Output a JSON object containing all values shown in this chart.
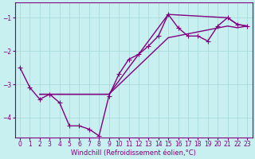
{
  "bg_color": "#c8f0f0",
  "grid_color": "#a8dada",
  "line_color": "#800080",
  "line_width": 1.0,
  "marker": "+",
  "marker_size": 4,
  "marker_lw": 0.8,
  "xlabel": "Windchill (Refroidissement éolien,°C)",
  "xlabel_fontsize": 6,
  "tick_fontsize": 5.5,
  "xlim": [
    -0.5,
    23.5
  ],
  "ylim": [
    -4.6,
    -0.55
  ],
  "yticks": [
    -4,
    -3,
    -2,
    -1
  ],
  "xticks": [
    0,
    1,
    2,
    3,
    4,
    5,
    6,
    7,
    8,
    9,
    10,
    11,
    12,
    13,
    14,
    15,
    16,
    17,
    18,
    19,
    20,
    21,
    22,
    23
  ],
  "curve1_x": [
    0,
    1,
    2,
    3,
    4,
    5,
    6,
    7,
    8,
    9,
    10,
    11,
    12,
    13,
    14,
    15,
    16,
    17,
    18,
    19,
    20,
    21,
    22,
    23
  ],
  "curve1_y": [
    -2.5,
    -3.1,
    -3.45,
    -3.3,
    -3.55,
    -4.25,
    -4.25,
    -4.35,
    -4.55,
    -3.35,
    -2.7,
    -2.25,
    -2.1,
    -1.85,
    -1.55,
    -0.9,
    -1.3,
    -1.55,
    -1.55,
    -1.7,
    -1.25,
    -1.0,
    -1.2,
    -1.25
  ],
  "curve2_x": [
    2,
    9,
    15,
    21,
    22,
    23
  ],
  "curve2_y": [
    -3.3,
    -3.3,
    -0.9,
    -1.0,
    -1.2,
    -1.25
  ],
  "curve3_x": [
    2,
    9,
    15,
    21,
    22,
    23
  ],
  "curve3_y": [
    -3.3,
    -3.3,
    -1.6,
    -1.25,
    -1.3,
    -1.25
  ]
}
